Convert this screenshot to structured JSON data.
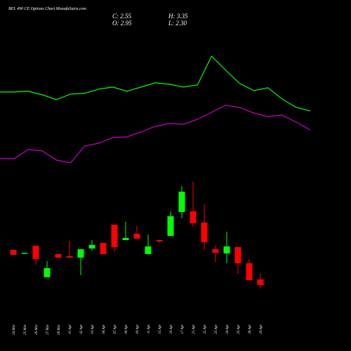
{
  "chart_data": {
    "type": "candlestick",
    "title": "BEL 490 CE Options Chart MunafaSutra.com",
    "info": [
      "C: 2.55",
      "H: 3.35",
      "O: 2.95",
      "L: 2.30"
    ],
    "categories": [
      "24 Mar",
      "25 Mar",
      "26 Mar",
      "27 Mar",
      "28 Mar",
      "01 Apr",
      "02 Apr",
      "03 Apr",
      "04 Apr",
      "07 Apr",
      "08 Apr",
      "09 Apr",
      "11 Apr",
      "15 Apr",
      "16 Apr",
      "17 Apr",
      "21 Apr",
      "22 Apr",
      "23 Apr",
      "24 Apr",
      "25 Apr",
      "28 Apr",
      "29 Apr"
    ],
    "open": [
      5.05,
      4.8,
      5.35,
      3.1,
      4.75,
      4.6,
      4.5,
      5.15,
      5.55,
      6.85,
      5.75,
      6.2,
      4.75,
      5.75,
      6.05,
      7.75,
      7.8,
      7.0,
      5.1,
      4.8,
      5.25,
      4.1,
      2.95
    ],
    "high": [
      5.05,
      4.85,
      5.35,
      4.25,
      4.75,
      5.7,
      5.1,
      5.75,
      5.55,
      6.85,
      7.05,
      6.75,
      6.15,
      5.75,
      7.8,
      9.6,
      9.9,
      8.3,
      5.35,
      6.35,
      5.25,
      4.4,
      3.35
    ],
    "low": [
      4.7,
      4.8,
      4.0,
      3.1,
      4.5,
      4.5,
      3.25,
      5.0,
      4.75,
      4.9,
      5.75,
      5.85,
      4.75,
      5.55,
      6.05,
      7.3,
      6.7,
      5.0,
      4.15,
      4.1,
      3.35,
      2.85,
      2.3
    ],
    "close": [
      4.7,
      4.85,
      4.4,
      3.75,
      4.5,
      4.5,
      5.1,
      5.4,
      4.75,
      5.25,
      5.9,
      5.85,
      5.3,
      5.65,
      7.45,
      9.2,
      6.95,
      5.6,
      4.85,
      5.3,
      4.1,
      2.9,
      2.55
    ],
    "up_color": "#00ff00",
    "down_color": "#ff0000",
    "ylim": [
      1.85,
      10.35
    ],
    "y2lim": [
      0,
      250
    ],
    "series": [
      {
        "color": "#00ff00",
        "axis": "y2",
        "values": [
          119,
          119,
          120,
          115,
          108,
          116,
          117,
          123,
          126,
          120,
          126,
          132,
          130,
          126,
          129,
          170,
          150,
          131,
          121,
          125,
          109,
          97,
          92
        ]
      },
      {
        "color": "#cc00cc",
        "axis": "y2",
        "values": [
          24,
          24,
          37,
          35,
          22,
          18,
          42,
          46,
          54,
          55,
          62,
          70,
          74,
          73,
          80,
          90,
          100,
          97,
          89,
          84,
          86,
          76,
          65
        ]
      }
    ]
  }
}
